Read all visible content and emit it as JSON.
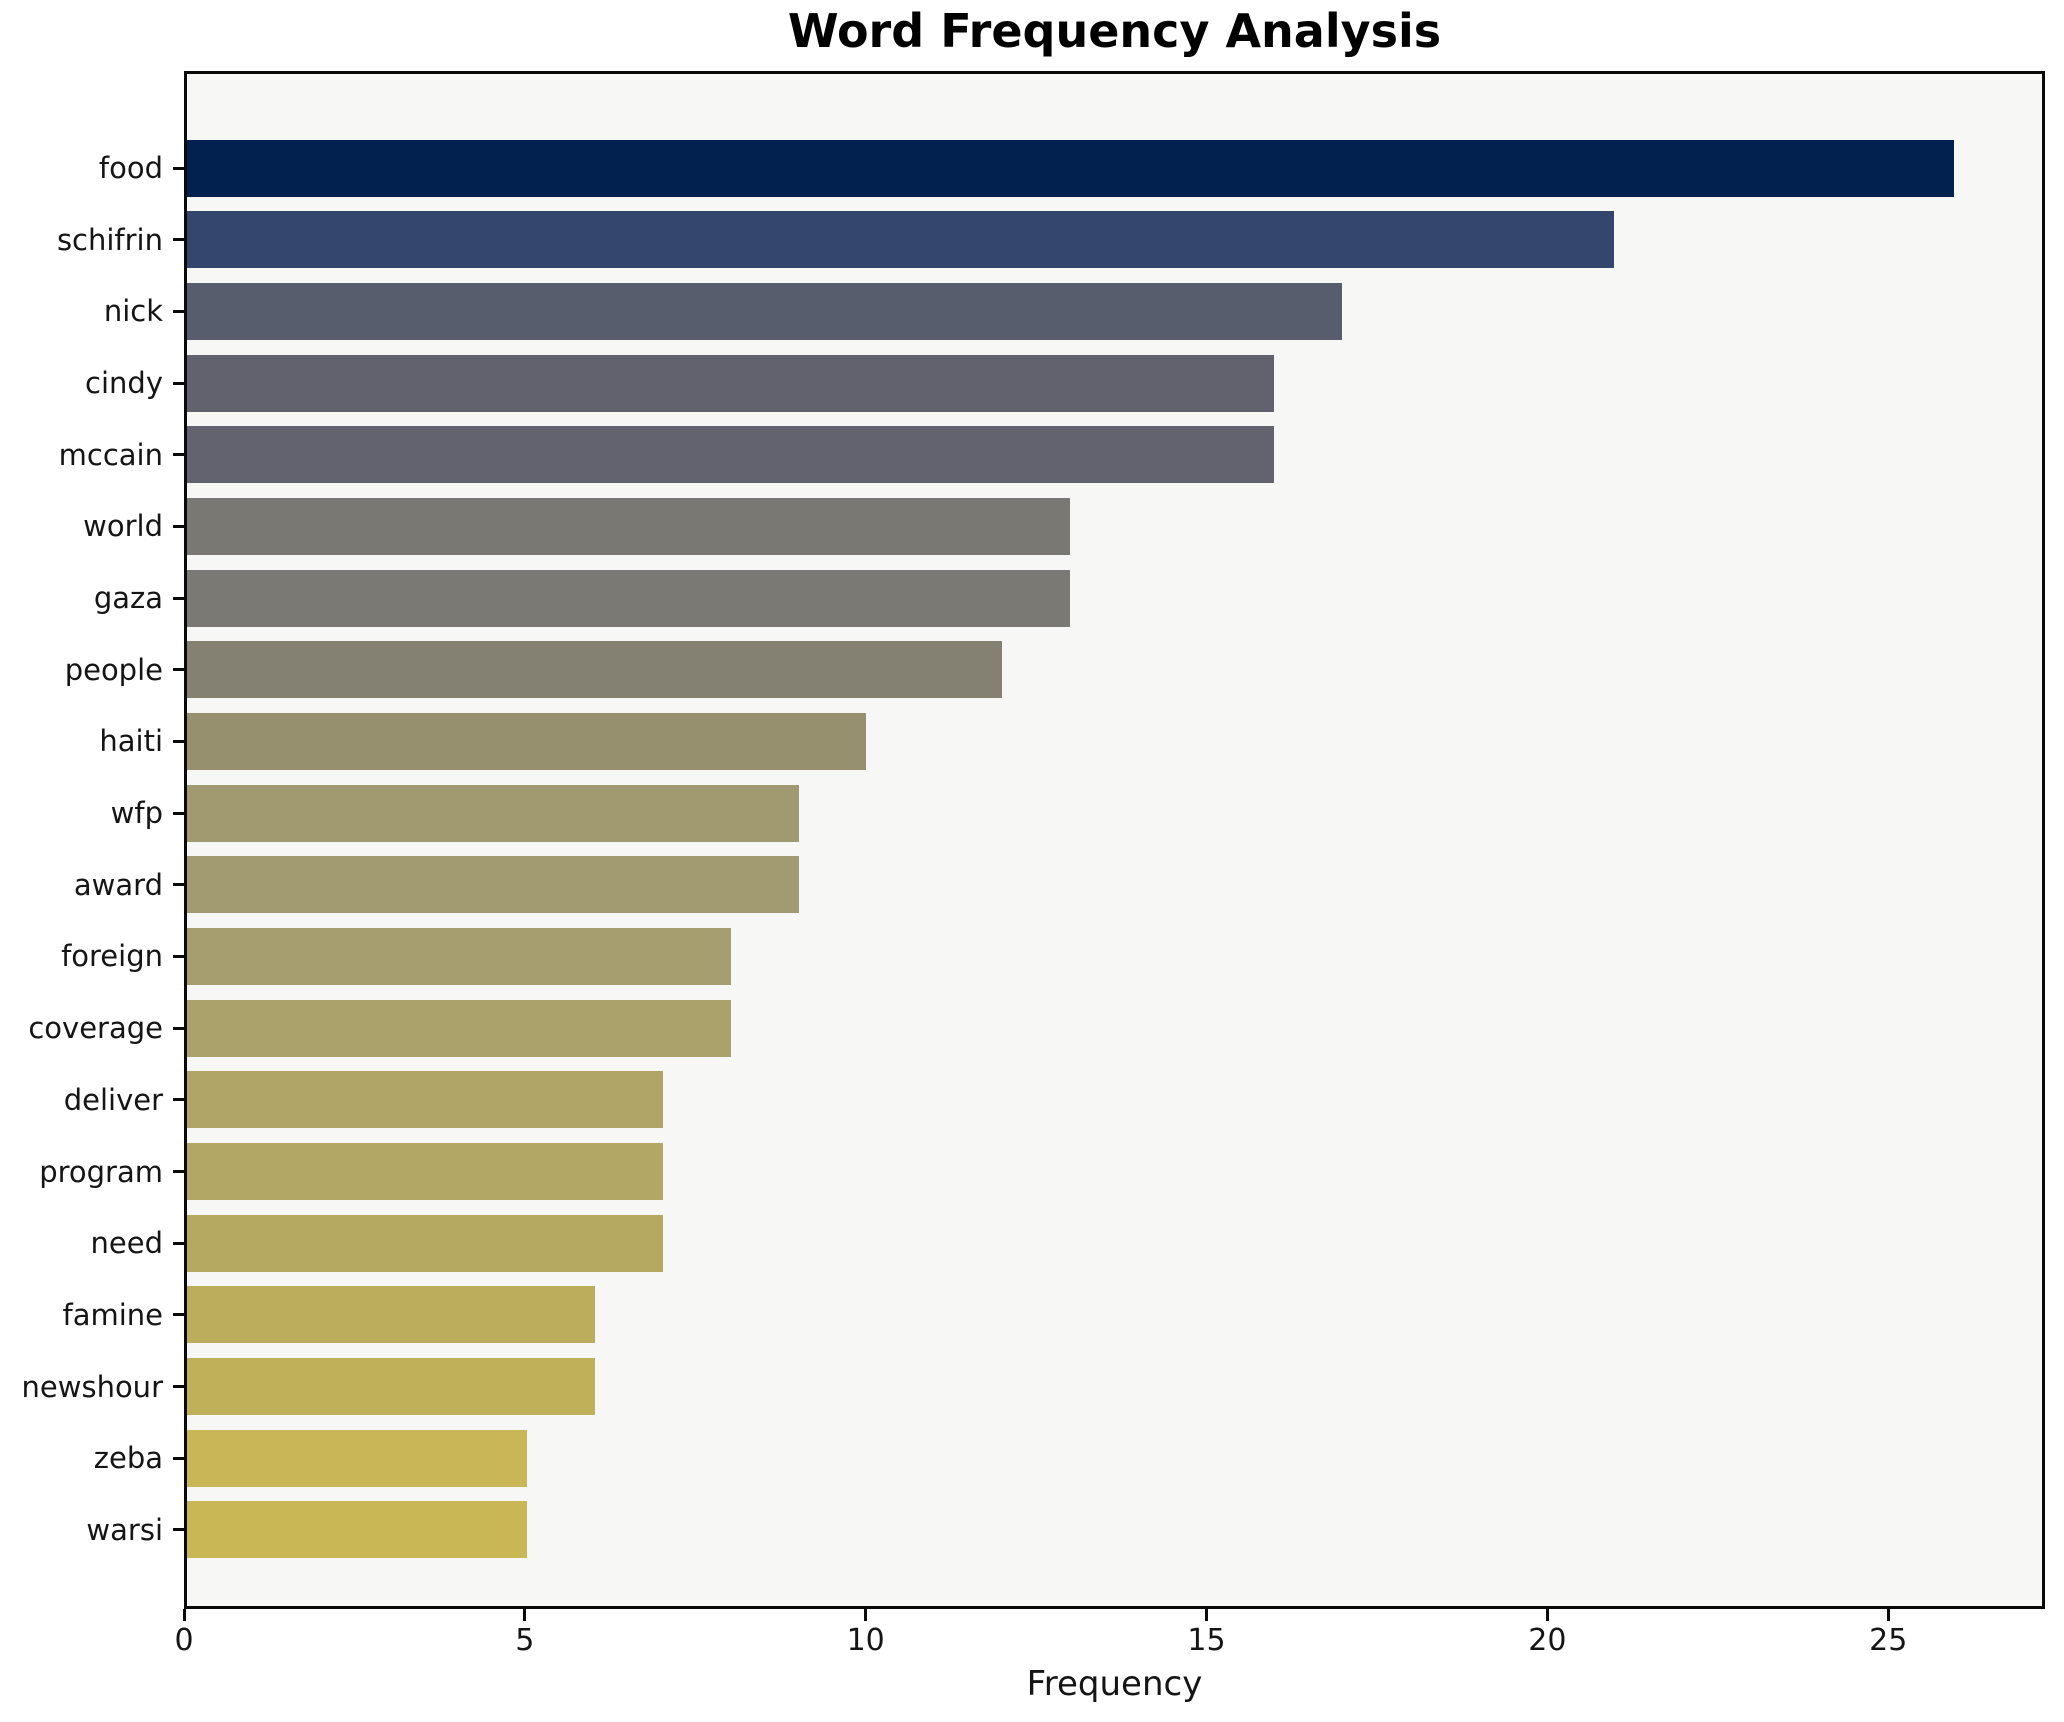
{
  "title": "Word Frequency Analysis",
  "chart_data": {
    "type": "bar",
    "orientation": "horizontal",
    "title": "Word Frequency Analysis",
    "xlabel": "Frequency",
    "ylabel": "",
    "categories": [
      "food",
      "schifrin",
      "nick",
      "cindy",
      "mccain",
      "world",
      "gaza",
      "people",
      "haiti",
      "wfp",
      "award",
      "foreign",
      "coverage",
      "deliver",
      "program",
      "need",
      "famine",
      "newshour",
      "zeba",
      "warsi"
    ],
    "values": [
      26,
      21,
      17,
      16,
      16,
      13,
      13,
      12,
      10,
      9,
      9,
      8,
      8,
      7,
      7,
      7,
      6,
      6,
      5,
      5
    ],
    "bar_colors": [
      "#02214f",
      "#35466d",
      "#575d6c",
      "#61626e",
      "#62636e",
      "#7a7872",
      "#7b7973",
      "#848172",
      "#97906e",
      "#a19a70",
      "#a29b71",
      "#a79e6f",
      "#aba16b",
      "#b0a567",
      "#b3a765",
      "#b5a962",
      "#bcad5c",
      "#bfb059",
      "#c8b657",
      "#c9b755"
    ],
    "xlim": [
      0,
      27.3
    ],
    "xticks": [
      0,
      5,
      10,
      15,
      20,
      25
    ],
    "grid": false,
    "legend": null,
    "plot_bg": "#f7f7f5",
    "fig_bg": "#ffffff",
    "spine_color": "#0a0a0a"
  }
}
